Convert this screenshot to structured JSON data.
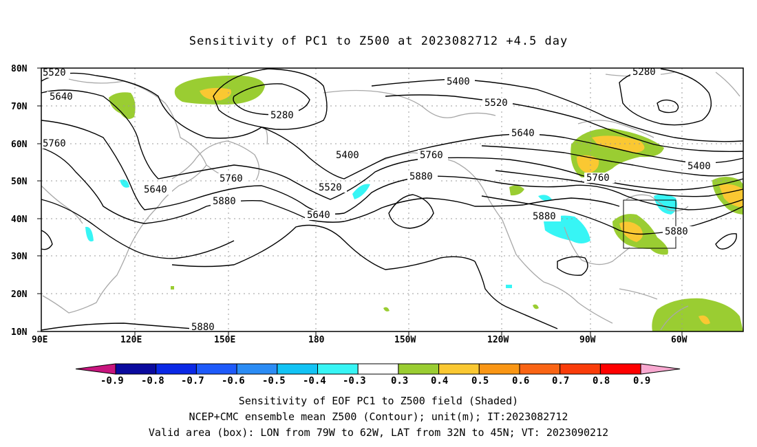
{
  "title": "Sensitivity of PC1 to Z500 at 2023082712 +4.5 day",
  "lat_labels": [
    "80N",
    "70N",
    "60N",
    "50N",
    "40N",
    "30N",
    "20N",
    "10N"
  ],
  "lon_labels": [
    "90E",
    "120E",
    "150E",
    "180",
    "150W",
    "120W",
    "90W",
    "60W"
  ],
  "contour_labels": [
    "5520",
    "5640",
    "5760",
    "5640",
    "5280",
    "5760",
    "5880",
    "5400",
    "5520",
    "5640",
    "5400",
    "5520",
    "5760",
    "5640",
    "5880",
    "5880",
    "5280",
    "5400",
    "5760",
    "5880",
    "5880"
  ],
  "colorbar": {
    "labels": [
      "-0.9",
      "-0.8",
      "-0.7",
      "-0.6",
      "-0.5",
      "-0.4",
      "-0.3",
      "0.3",
      "0.4",
      "0.5",
      "0.6",
      "0.7",
      "0.8",
      "0.9"
    ],
    "colors": [
      "#c8157e",
      "#0a0a9e",
      "#0a28e6",
      "#1e5afa",
      "#2b8cf5",
      "#12c3f5",
      "#37f5f5",
      "#ffffff",
      "#9acd32",
      "#fac832",
      "#fa9614",
      "#fa6414",
      "#fa3c0a",
      "#ff0000",
      "#f8a8d0"
    ]
  },
  "shading_colors": {
    "positive_low": "#9acd32",
    "positive_mid": "#fac832",
    "negative": "#37f5f5",
    "coast": "#a8a8a8"
  },
  "footer": {
    "line1": "Sensitivity of EOF PC1 to Z500 field (Shaded)",
    "line2": "NCEP+CMC ensemble mean Z500 (Contour); unit(m); IT:2023082712",
    "line3": "Valid area (box): LON from 79W to 62W, LAT from 32N to 45N; VT: 2023090212"
  }
}
